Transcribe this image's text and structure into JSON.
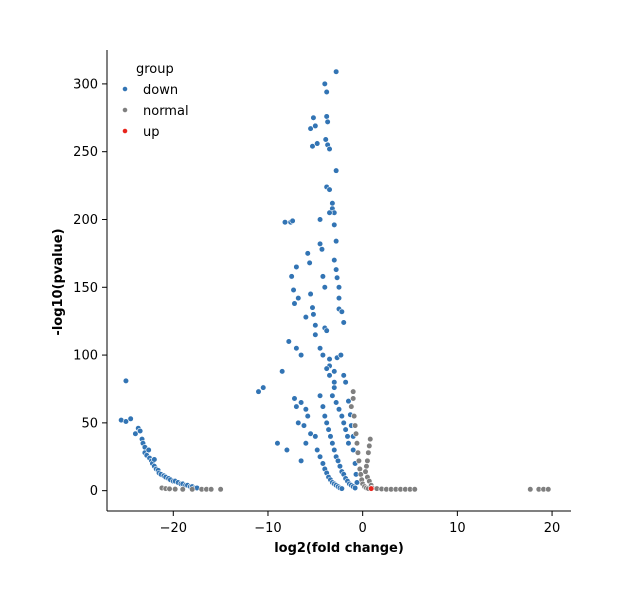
{
  "chart_data": {
    "type": "scatter",
    "xlabel": "log2(fold change)",
    "ylabel": "-log10(pvalue)",
    "xlim": [
      -27,
      22
    ],
    "ylim": [
      -15,
      325
    ],
    "x_ticks": [
      -20,
      -10,
      0,
      10,
      20
    ],
    "y_ticks": [
      0,
      50,
      100,
      150,
      200,
      250,
      300
    ],
    "grid": false,
    "legend": {
      "title": "group",
      "position": "top-left",
      "entries": [
        {
          "name": "down",
          "color": "#3274b4"
        },
        {
          "name": "normal",
          "color": "#7f7f7f"
        },
        {
          "name": "up",
          "color": "#e8241c"
        }
      ]
    },
    "series": [
      {
        "name": "down",
        "color": "#3274b4",
        "points": [
          [
            -25.0,
            81
          ],
          [
            -25.5,
            52
          ],
          [
            -25.0,
            51
          ],
          [
            -24.5,
            53
          ],
          [
            -24.0,
            42
          ],
          [
            -23.7,
            46
          ],
          [
            -23.5,
            44
          ],
          [
            -23.3,
            38
          ],
          [
            -23.2,
            35
          ],
          [
            -23.0,
            32
          ],
          [
            -23.0,
            28
          ],
          [
            -22.8,
            26
          ],
          [
            -22.6,
            30
          ],
          [
            -22.5,
            24
          ],
          [
            -22.3,
            22
          ],
          [
            -22.2,
            20
          ],
          [
            -22.0,
            23
          ],
          [
            -22.0,
            18
          ],
          [
            -21.8,
            16
          ],
          [
            -21.6,
            15
          ],
          [
            -21.5,
            13
          ],
          [
            -21.3,
            12
          ],
          [
            -21.0,
            11
          ],
          [
            -20.8,
            10
          ],
          [
            -20.5,
            9
          ],
          [
            -20.3,
            8
          ],
          [
            -20.0,
            7
          ],
          [
            -19.8,
            7
          ],
          [
            -19.5,
            6
          ],
          [
            -19.2,
            5
          ],
          [
            -19.0,
            5
          ],
          [
            -18.7,
            4
          ],
          [
            -18.5,
            4
          ],
          [
            -18.2,
            3
          ],
          [
            -18.0,
            3
          ],
          [
            -17.7,
            2
          ],
          [
            -17.5,
            2
          ],
          [
            -11.0,
            73
          ],
          [
            -10.5,
            76
          ],
          [
            -9.0,
            35
          ],
          [
            -8.0,
            30
          ],
          [
            -8.5,
            88
          ],
          [
            -8.2,
            198
          ],
          [
            -7.6,
            198
          ],
          [
            -7.4,
            199
          ],
          [
            -7.0,
            165
          ],
          [
            -7.5,
            158
          ],
          [
            -7.3,
            148
          ],
          [
            -7.2,
            138
          ],
          [
            -6.8,
            142
          ],
          [
            -7.8,
            110
          ],
          [
            -7.0,
            105
          ],
          [
            -6.5,
            100
          ],
          [
            -7.2,
            68
          ],
          [
            -7.0,
            62
          ],
          [
            -6.5,
            65
          ],
          [
            -6.8,
            50
          ],
          [
            -6.2,
            48
          ],
          [
            -6.0,
            60
          ],
          [
            -5.8,
            55
          ],
          [
            -5.5,
            42
          ],
          [
            -6.5,
            22
          ],
          [
            -6.0,
            35
          ],
          [
            -6.0,
            128
          ],
          [
            -5.8,
            175
          ],
          [
            -5.6,
            168
          ],
          [
            -5.5,
            145
          ],
          [
            -5.3,
            135
          ],
          [
            -5.2,
            130
          ],
          [
            -5.0,
            122
          ],
          [
            -5.0,
            115
          ],
          [
            -5.5,
            267
          ],
          [
            -5.3,
            254
          ],
          [
            -5.2,
            275
          ],
          [
            -5.0,
            269
          ],
          [
            -4.8,
            256
          ],
          [
            -4.5,
            200
          ],
          [
            -4.5,
            182
          ],
          [
            -4.3,
            178
          ],
          [
            -4.2,
            158
          ],
          [
            -4.0,
            150
          ],
          [
            -4.0,
            120
          ],
          [
            -3.8,
            118
          ],
          [
            -3.5,
            97
          ],
          [
            -3.5,
            92
          ],
          [
            -3.0,
            76
          ],
          [
            -3.0,
            80
          ],
          [
            -4.0,
            300
          ],
          [
            -3.8,
            294
          ],
          [
            -3.8,
            276
          ],
          [
            -3.7,
            272
          ],
          [
            -3.9,
            259
          ],
          [
            -3.7,
            255
          ],
          [
            -3.5,
            252
          ],
          [
            -3.8,
            224
          ],
          [
            -3.5,
            222
          ],
          [
            -3.2,
            208
          ],
          [
            -3.0,
            205
          ],
          [
            -3.5,
            205
          ],
          [
            -3.0,
            196
          ],
          [
            -2.8,
            184
          ],
          [
            -3.0,
            170
          ],
          [
            -2.8,
            163
          ],
          [
            -2.7,
            157
          ],
          [
            -2.5,
            150
          ],
          [
            -2.5,
            142
          ],
          [
            -2.5,
            134
          ],
          [
            -2.2,
            132
          ],
          [
            -2.0,
            124
          ],
          [
            -2.8,
            309
          ],
          [
            -2.8,
            236
          ],
          [
            -3.2,
            212
          ],
          [
            -4.5,
            105
          ],
          [
            -4.2,
            100
          ],
          [
            -3.8,
            90
          ],
          [
            -3.5,
            85
          ],
          [
            -3.2,
            70
          ],
          [
            -2.8,
            65
          ],
          [
            -2.5,
            60
          ],
          [
            -2.2,
            55
          ],
          [
            -2.0,
            50
          ],
          [
            -1.8,
            45
          ],
          [
            -1.6,
            40
          ],
          [
            -1.5,
            35
          ],
          [
            -4.5,
            70
          ],
          [
            -4.2,
            62
          ],
          [
            -4.0,
            55
          ],
          [
            -3.8,
            50
          ],
          [
            -3.6,
            45
          ],
          [
            -3.4,
            40
          ],
          [
            -3.2,
            35
          ],
          [
            -3.0,
            30
          ],
          [
            -2.8,
            25
          ],
          [
            -2.6,
            22
          ],
          [
            -2.4,
            18
          ],
          [
            -2.2,
            14
          ],
          [
            -2.0,
            12
          ],
          [
            -1.8,
            9
          ],
          [
            -1.6,
            7
          ],
          [
            -1.4,
            5
          ],
          [
            -1.2,
            4
          ],
          [
            -1.0,
            3
          ],
          [
            -0.8,
            2
          ],
          [
            -5.0,
            40
          ],
          [
            -4.8,
            30
          ],
          [
            -4.5,
            25
          ],
          [
            -4.2,
            20
          ],
          [
            -4.0,
            16
          ],
          [
            -3.8,
            13
          ],
          [
            -3.6,
            10
          ],
          [
            -3.4,
            8
          ],
          [
            -3.2,
            6
          ],
          [
            -3.0,
            5
          ],
          [
            -2.8,
            4
          ],
          [
            -2.6,
            3
          ],
          [
            -2.4,
            2
          ],
          [
            -2.2,
            1.5
          ],
          [
            -3.0,
            88
          ],
          [
            -2.7,
            98
          ],
          [
            -2.3,
            100
          ],
          [
            -2.0,
            85
          ],
          [
            -1.8,
            80
          ],
          [
            -1.5,
            66
          ],
          [
            -1.3,
            56
          ],
          [
            -1.2,
            48
          ],
          [
            -1.0,
            40
          ],
          [
            -1.0,
            30
          ],
          [
            -0.8,
            20
          ],
          [
            -0.7,
            12
          ],
          [
            -0.6,
            6
          ]
        ]
      },
      {
        "name": "normal",
        "color": "#7f7f7f",
        "points": [
          [
            -21.2,
            2
          ],
          [
            -20.8,
            1.5
          ],
          [
            -20.4,
            1.3
          ],
          [
            -19.8,
            1.1
          ],
          [
            -19.0,
            1.0
          ],
          [
            -18.0,
            1.0
          ],
          [
            -17.0,
            1.0
          ],
          [
            -16.5,
            1.0
          ],
          [
            -16.0,
            1.0
          ],
          [
            -15.0,
            1.0
          ],
          [
            -1.0,
            73
          ],
          [
            -1.0,
            68
          ],
          [
            -1.2,
            62
          ],
          [
            -0.9,
            55
          ],
          [
            -0.8,
            48
          ],
          [
            -0.7,
            42
          ],
          [
            -0.6,
            35
          ],
          [
            -0.5,
            28
          ],
          [
            -0.4,
            22
          ],
          [
            -0.3,
            16
          ],
          [
            -0.2,
            12
          ],
          [
            -0.1,
            8
          ],
          [
            0.0,
            5
          ],
          [
            0.2,
            3
          ],
          [
            0.4,
            2
          ],
          [
            0.6,
            1.5
          ],
          [
            0.8,
            38
          ],
          [
            0.7,
            33
          ],
          [
            0.6,
            28
          ],
          [
            0.5,
            22
          ],
          [
            0.4,
            18
          ],
          [
            0.3,
            14
          ],
          [
            0.5,
            10
          ],
          [
            0.7,
            7
          ],
          [
            0.9,
            4
          ],
          [
            1.0,
            2
          ],
          [
            1.5,
            1.5
          ],
          [
            2.0,
            1.2
          ],
          [
            2.5,
            1.0
          ],
          [
            3.0,
            1.0
          ],
          [
            3.5,
            1.0
          ],
          [
            4.0,
            1.0
          ],
          [
            4.5,
            1.0
          ],
          [
            5.0,
            1.0
          ],
          [
            5.5,
            1.0
          ],
          [
            17.7,
            1.0
          ],
          [
            18.6,
            1.0
          ],
          [
            19.1,
            1.0
          ],
          [
            19.6,
            1.0
          ]
        ]
      },
      {
        "name": "up",
        "color": "#e8241c",
        "points": [
          [
            0.9,
            1.5
          ]
        ]
      }
    ]
  }
}
